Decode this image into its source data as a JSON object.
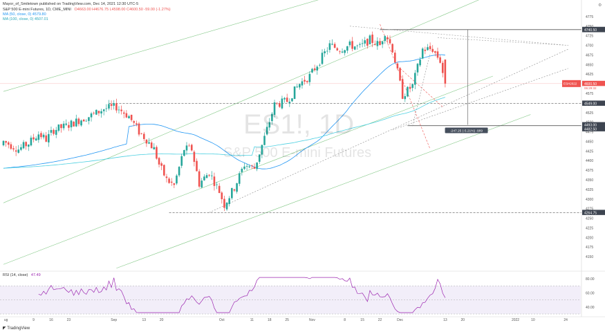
{
  "header": {
    "publish_line": "Mayor_of_Smiletown published on TradingView.com, Dec 14, 2021 12:30 UTC-5",
    "symbol_line": "S&P 500 E-mini Futures, 1D, CME_MINI",
    "ohlc": "O4663.00 H4676.75 L4598.00 C4600.50 -59.00 (-1.27%)",
    "ma50": "MA (50, close, 0)  4579.80",
    "ma100": "MA (100, close, 0)  4507.01",
    "rsi_label": "RSI (14, close)",
    "rsi_value": "47.49"
  },
  "watermark": {
    "symbol": "ES1!, 1D",
    "name": "S&P 500 E-mini Futures"
  },
  "footer": {
    "brand": "TradingView"
  },
  "colors": {
    "up": "#26a69a",
    "down": "#ef5350",
    "ma50": "#2196f3",
    "ma100": "#4dd0e1",
    "channel": "#66bb6a",
    "rsi": "#9c27b0",
    "rsi_band": "#ede7f6"
  },
  "chart_data": {
    "type": "candlestick",
    "symbol": "ES1!",
    "timeframe": "1D",
    "price_axis": {
      "min": 4125,
      "max": 4800,
      "ticks": [
        4150,
        4175,
        4200,
        4225,
        4250,
        4275,
        4300,
        4325,
        4350,
        4375,
        4400,
        4425,
        4450,
        4475,
        4500,
        4525,
        4550,
        4575,
        4600,
        4625,
        4650,
        4675,
        4700,
        4725,
        4750,
        4775
      ],
      "currency": "USD"
    },
    "time_axis": {
      "labels": [
        {
          "i": 1,
          "text": "ug"
        },
        {
          "i": 12,
          "text": "9"
        },
        {
          "i": 19,
          "text": "16"
        },
        {
          "i": 26,
          "text": "23"
        },
        {
          "i": 44,
          "text": "Sep"
        },
        {
          "i": 56,
          "text": "13"
        },
        {
          "i": 63,
          "text": "20"
        },
        {
          "i": 87,
          "text": "Oct"
        },
        {
          "i": 99,
          "text": "11"
        },
        {
          "i": 106,
          "text": "18"
        },
        {
          "i": 113,
          "text": "25"
        },
        {
          "i": 123,
          "text": "Nov"
        },
        {
          "i": 136,
          "text": "8"
        },
        {
          "i": 143,
          "text": "15"
        },
        {
          "i": 150,
          "text": "22"
        },
        {
          "i": 158,
          "text": "Dec"
        },
        {
          "i": 176,
          "text": "13"
        },
        {
          "i": 183,
          "text": "20"
        },
        {
          "i": 204,
          "text": "2022"
        },
        {
          "i": 211,
          "text": "10"
        },
        {
          "i": 224,
          "text": "24"
        }
      ]
    },
    "price_labels": [
      {
        "value": 4741,
        "text": "4741.00",
        "style": "dark"
      },
      {
        "value": 4740.5,
        "text": "4740.50",
        "style": "dark"
      },
      {
        "value": 4600.5,
        "text": "4600.50",
        "style": "red"
      },
      {
        "value": 4549,
        "text": "4549.00",
        "style": "dark"
      },
      {
        "value": 4493,
        "text": "4493.00",
        "style": "dark"
      },
      {
        "value": 4482.5,
        "text": "4482.50",
        "style": "dark"
      },
      {
        "value": 4264.75,
        "text": "4264.75",
        "style": "dark"
      }
    ],
    "current_label": {
      "line1": "ESH2022",
      "line2": "4600.50",
      "line3": "06:29:32",
      "value": 4600.5
    },
    "levels": [
      {
        "value": 4741,
        "style": "solid"
      },
      {
        "value": 4549,
        "style": "dashed"
      },
      {
        "value": 4491,
        "style": "solid"
      },
      {
        "value": 4264.75,
        "style": "dashed"
      }
    ],
    "measure_label": "-247.25 (-5.21%) -989",
    "rsi": {
      "min": 30,
      "max": 85,
      "ticks": [
        40,
        60,
        80
      ],
      "band": [
        30,
        70
      ],
      "value": 47.49
    }
  }
}
